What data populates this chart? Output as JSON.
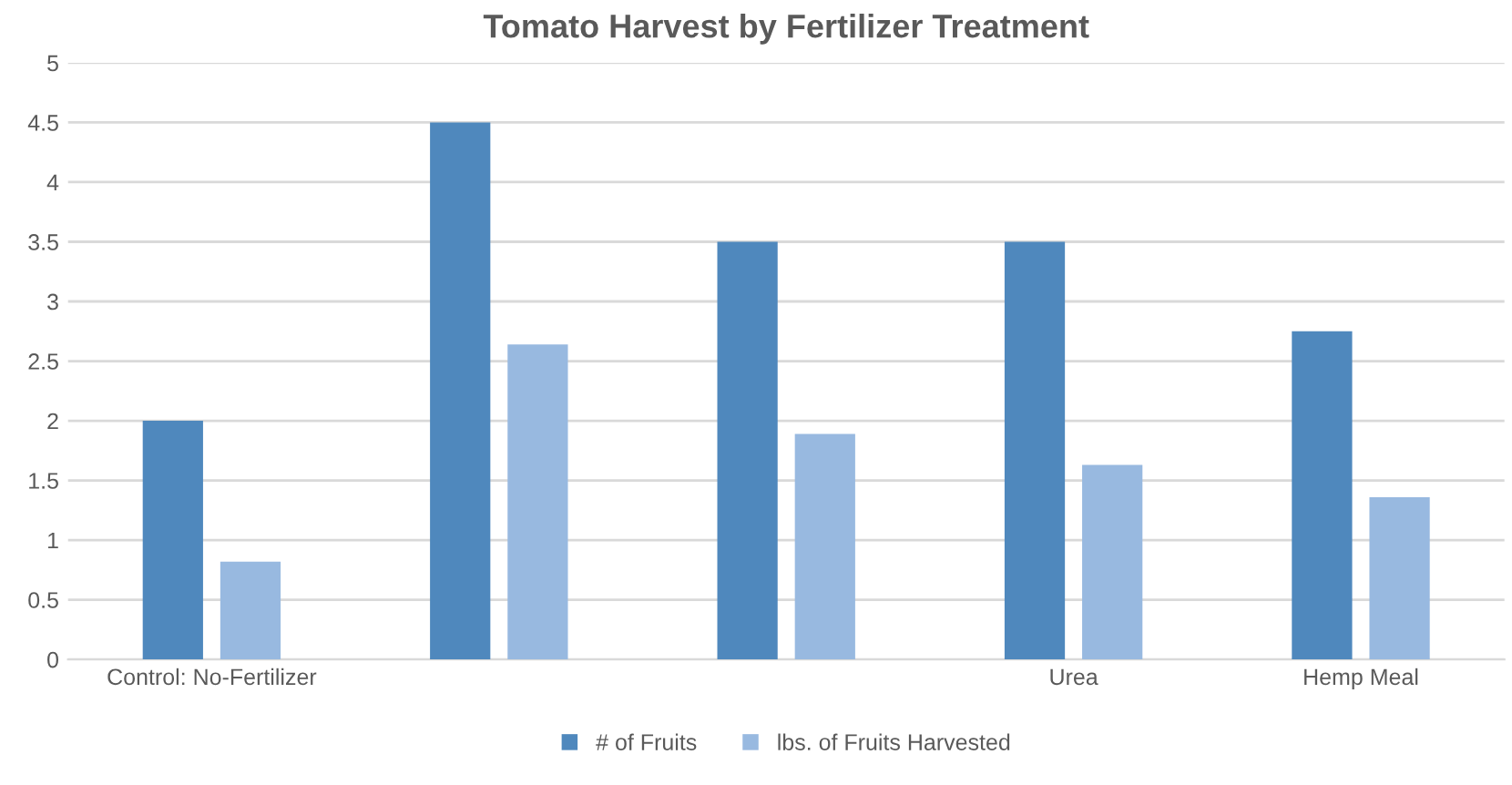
{
  "chart_data": {
    "type": "bar",
    "title": "Tomato Harvest by Fertilizer Treatment",
    "categories": [
      "Control: No-Fertilizer",
      null,
      null,
      "Urea",
      "Hemp Meal"
    ],
    "series": [
      {
        "name": "# of Fruits",
        "color": "#4f88bd",
        "values": [
          2,
          4.5,
          3.5,
          3.5,
          2.75
        ]
      },
      {
        "name": "lbs. of Fruits Harvested",
        "color": "#98b9e0",
        "values": [
          0.82,
          2.64,
          1.89,
          1.63,
          1.36
        ]
      }
    ],
    "ylim": [
      0,
      5
    ],
    "yticks": [
      0,
      0.5,
      1,
      1.5,
      2,
      2.5,
      3,
      3.5,
      4,
      4.5,
      5
    ],
    "grid": "y",
    "legend": "bottom"
  }
}
